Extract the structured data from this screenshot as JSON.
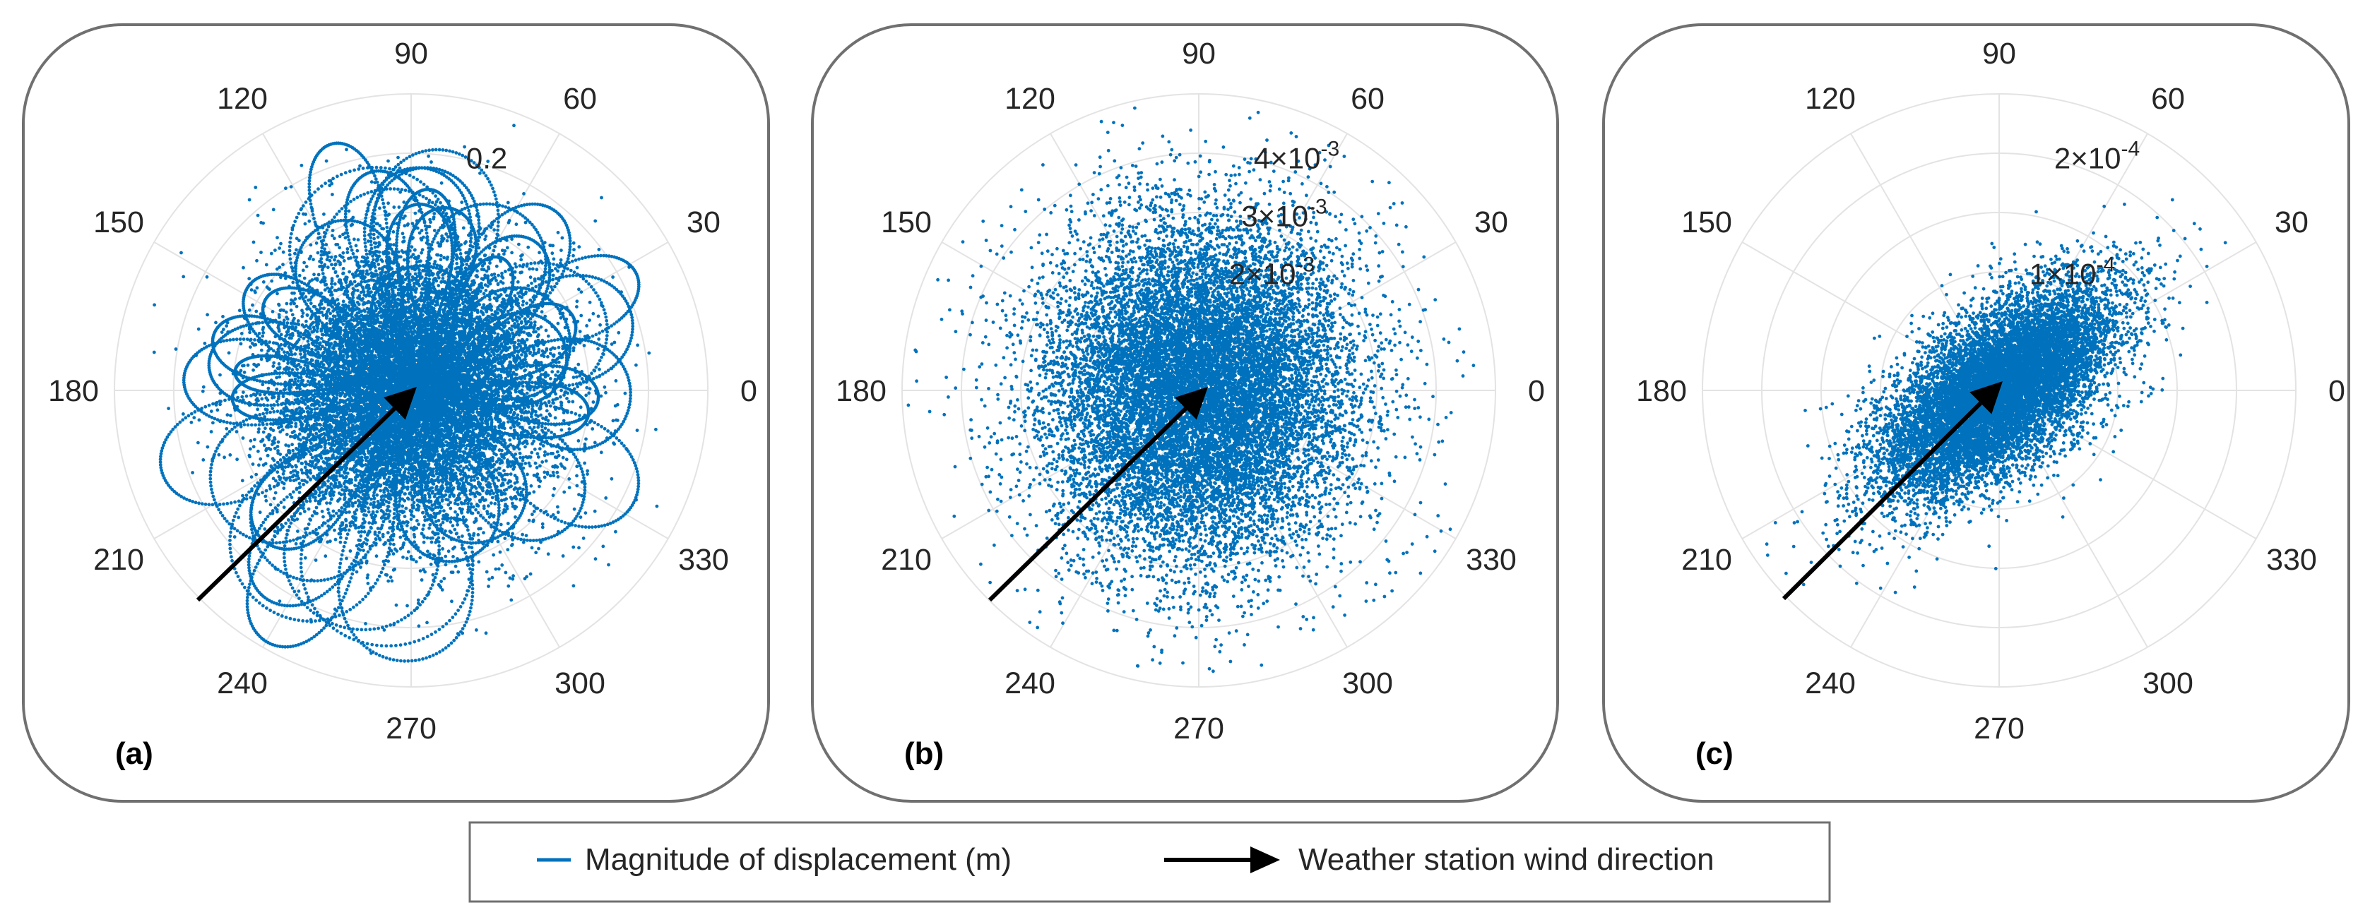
{
  "chart_data": [
    {
      "type": "scatter",
      "coordinate_system": "polar",
      "panel_label": "(a)",
      "theta_ticks": [
        "0",
        "30",
        "60",
        "90",
        "120",
        "150",
        "180",
        "210",
        "240",
        "270",
        "300",
        "330"
      ],
      "r_ticks": [
        {
          "value": 0.2,
          "label": "0.2"
        }
      ],
      "rlim": [
        0,
        0.25
      ],
      "series": [
        {
          "name": "Magnitude of displacement (m)",
          "distribution": "dense cloud of looping trajectories centred at origin, mostly within r = 0.12, loops reaching r = 0.22",
          "points_estimate": 12000
        }
      ],
      "wind_arrow": {
        "direction_deg": 37,
        "from_deg": 217
      }
    },
    {
      "type": "scatter",
      "coordinate_system": "polar",
      "panel_label": "(b)",
      "theta_ticks": [
        "0",
        "30",
        "60",
        "90",
        "120",
        "150",
        "180",
        "210",
        "240",
        "270",
        "300",
        "330"
      ],
      "r_ticks": [
        {
          "value": 0.002,
          "label": "2×10",
          "exp": "-3"
        },
        {
          "value": 0.003,
          "label": "3×10",
          "exp": "-3"
        },
        {
          "value": 0.004,
          "label": "4×10",
          "exp": "-3"
        }
      ],
      "rlim": [
        0,
        0.005
      ],
      "series": [
        {
          "name": "Magnitude of displacement (m)",
          "distribution": "broad roughly isotropic cloud, core within r = 0.002, scattered points to r = 0.004",
          "points_estimate": 14000
        }
      ],
      "wind_arrow": {
        "direction_deg": 37,
        "from_deg": 217
      }
    },
    {
      "type": "scatter",
      "coordinate_system": "polar",
      "panel_label": "(c)",
      "theta_ticks": [
        "0",
        "30",
        "60",
        "90",
        "120",
        "150",
        "180",
        "210",
        "240",
        "270",
        "300",
        "330"
      ],
      "r_ticks": [
        {
          "value": 0.0001,
          "label": "1×10",
          "exp": "-4"
        },
        {
          "value": 0.0002,
          "label": "2×10",
          "exp": "-4"
        }
      ],
      "rlim": [
        0,
        0.00025
      ],
      "series": [
        {
          "name": "Magnitude of displacement (m)",
          "distribution": "elongated ellipse aligned along 40°–220° axis, major semi-axis ≈ 1.5×10^-4, minor ≈ 0.6×10^-4",
          "points_estimate": 11000
        }
      ],
      "wind_arrow": {
        "direction_deg": 37,
        "from_deg": 217
      }
    }
  ],
  "legend": {
    "items": [
      {
        "name": "Magnitude of displacement (m)",
        "symbol": "line"
      },
      {
        "name": "Weather station wind direction",
        "symbol": "arrow"
      }
    ]
  },
  "colors": {
    "series": "#0072BD",
    "arrow": "#000000",
    "grid": "#e3e3e3",
    "frame": "#707070",
    "text": "#262626"
  }
}
